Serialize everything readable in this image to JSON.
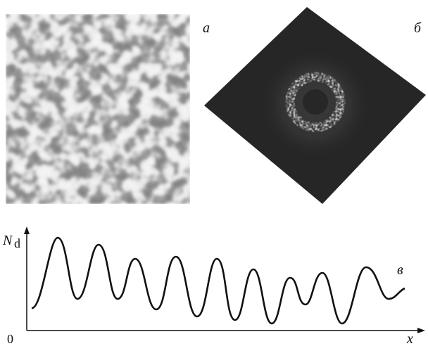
{
  "panels": {
    "a": {
      "label": "а"
    },
    "b": {
      "label": "б"
    },
    "c": {
      "label": "в",
      "y_axis_label": "N",
      "y_axis_subscript": "d",
      "x_axis_label": "x",
      "origin_label": "0"
    }
  }
}
